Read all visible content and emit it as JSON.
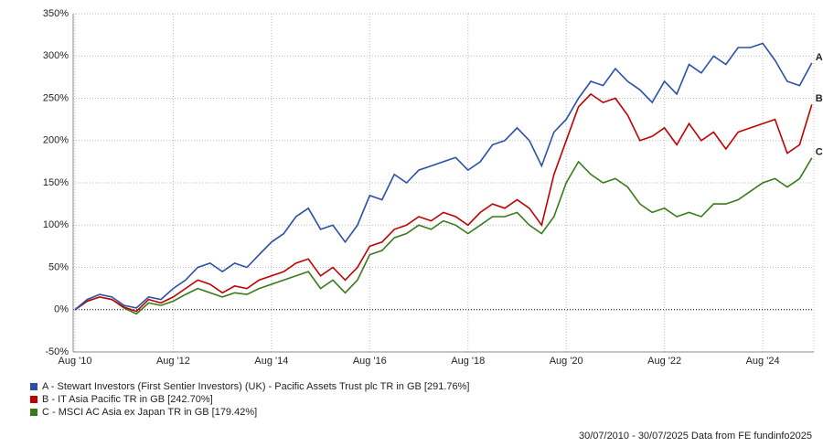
{
  "chart_data": {
    "type": "line",
    "categories": [
      "Aug '10",
      null,
      null,
      null,
      null,
      null,
      null,
      null,
      "Aug '12",
      null,
      null,
      null,
      null,
      null,
      null,
      null,
      "Aug '14",
      null,
      null,
      null,
      null,
      null,
      null,
      null,
      "Aug '16",
      null,
      null,
      null,
      null,
      null,
      null,
      null,
      "Aug '18",
      null,
      null,
      null,
      null,
      null,
      null,
      null,
      "Aug '20",
      null,
      null,
      null,
      null,
      null,
      null,
      null,
      "Aug '22",
      null,
      null,
      null,
      null,
      null,
      null,
      null,
      "Aug '24",
      null,
      null,
      null,
      null
    ],
    "series": [
      {
        "name": "A - Stewart Investors (First Sentier Investors) (UK) - Pacific Assets Trust plc TR in GB [291.76%]",
        "end_label": "A",
        "color": "#2a4fa8",
        "values": [
          0,
          12,
          18,
          15,
          5,
          2,
          15,
          12,
          25,
          35,
          50,
          55,
          45,
          55,
          50,
          65,
          80,
          90,
          110,
          120,
          95,
          100,
          80,
          100,
          135,
          130,
          160,
          150,
          165,
          170,
          175,
          180,
          165,
          175,
          195,
          200,
          215,
          200,
          170,
          210,
          225,
          250,
          270,
          265,
          285,
          270,
          260,
          245,
          270,
          255,
          290,
          280,
          300,
          290,
          310,
          310,
          315,
          295,
          270,
          265,
          291.76
        ]
      },
      {
        "name": "B - IT Asia Pacific TR in GB [242.70%]",
        "end_label": "B",
        "color": "#c00000",
        "values": [
          0,
          10,
          15,
          12,
          3,
          -2,
          12,
          8,
          15,
          25,
          35,
          30,
          20,
          28,
          25,
          35,
          40,
          45,
          55,
          60,
          40,
          50,
          35,
          50,
          75,
          80,
          95,
          100,
          110,
          105,
          115,
          110,
          100,
          115,
          125,
          120,
          130,
          120,
          100,
          160,
          200,
          240,
          255,
          245,
          250,
          230,
          200,
          205,
          215,
          195,
          220,
          200,
          210,
          190,
          210,
          215,
          220,
          225,
          185,
          195,
          242.7
        ]
      },
      {
        "name": "C - MSCI AC Asia ex Japan TR in GB [179.42%]",
        "end_label": "C",
        "color": "#3a7a1a",
        "values": [
          0,
          10,
          15,
          12,
          2,
          -5,
          8,
          5,
          10,
          18,
          25,
          20,
          15,
          20,
          18,
          25,
          30,
          35,
          40,
          45,
          25,
          35,
          20,
          35,
          65,
          70,
          85,
          90,
          100,
          95,
          105,
          100,
          90,
          100,
          110,
          110,
          115,
          100,
          90,
          110,
          150,
          175,
          160,
          150,
          155,
          145,
          125,
          115,
          120,
          110,
          115,
          110,
          125,
          125,
          130,
          140,
          150,
          155,
          145,
          155,
          179.42
        ]
      }
    ],
    "ylim": [
      -50,
      350
    ],
    "yticks": [
      {
        "value": -50,
        "label": "-50%"
      },
      {
        "value": 0,
        "label": "0%"
      },
      {
        "value": 50,
        "label": "50%"
      },
      {
        "value": 100,
        "label": "100%"
      },
      {
        "value": 150,
        "label": "150%"
      },
      {
        "value": 200,
        "label": "200%"
      },
      {
        "value": 250,
        "label": "250%"
      },
      {
        "value": 300,
        "label": "300%"
      },
      {
        "value": 350,
        "label": "350%"
      }
    ],
    "grid": true,
    "footer": "30/07/2010 - 30/07/2025 Data from FE fundinfo2025"
  }
}
